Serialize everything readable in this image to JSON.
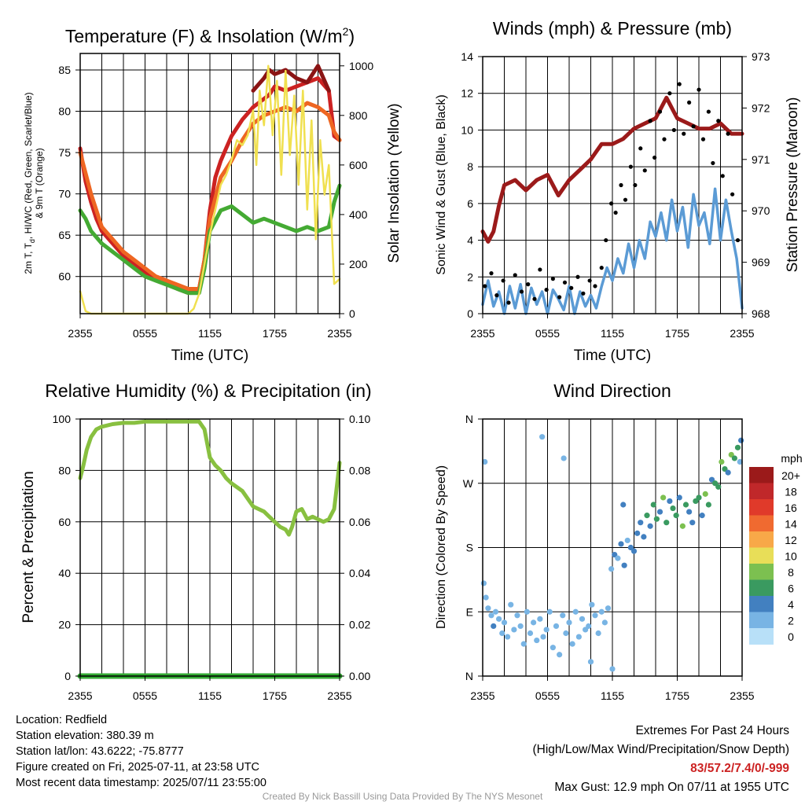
{
  "panels": {
    "temperature": {
      "title_main": "Temperature (F) & Insolation (W/m",
      "title_sup": "2",
      "title_end": ")",
      "ylabel_lines": [
        "2m T, T",
        "d",
        ", HI/WC (Red, Green, Scarlet/Blue)",
        "& 9m T (Orange)"
      ],
      "y2label": "Solar Insolation (Yellow)",
      "xlabel": "Time (UTC)"
    },
    "winds": {
      "title": "Winds (mph) & Pressure (mb)",
      "ylabel": "Sonic Wind & Gust (Blue, Black)",
      "y2label": "Station Pressure (Maroon)",
      "xlabel": "Time (UTC)"
    },
    "humidity": {
      "title": "Relative Humidity (%) & Precipitation (in)",
      "ylabel": "Percent & Precipitation"
    },
    "direction": {
      "title": "Wind Direction",
      "ylabel": "Direction (Colored By Speed)",
      "legend_title": "mph"
    }
  },
  "chart_data": [
    {
      "type": "line",
      "id": "temperature",
      "title": "Temperature (F) & Insolation (W/m2)",
      "xlabel": "Time (UTC)",
      "ylabel": "2m T, Td, HI/WC (Red, Green, Scarlet/Blue) & 9m T (Orange)",
      "y2label": "Solar Insolation (Yellow)",
      "x_ticks": [
        "2355",
        "0555",
        "1155",
        "1755",
        "2355"
      ],
      "xlim": [
        0,
        24
      ],
      "ylim": [
        55.5,
        87
      ],
      "y_ticks": [
        60,
        65,
        70,
        75,
        80,
        85
      ],
      "y2lim": [
        0,
        1050
      ],
      "y2_ticks": [
        0,
        200,
        400,
        600,
        800,
        1000
      ],
      "series": [
        {
          "color": "#cc2222",
          "axis": "left",
          "x": [
            0,
            0.5,
            1,
            1.5,
            2,
            3,
            4,
            5,
            6,
            7,
            8,
            9,
            10,
            11,
            11.5,
            12,
            12.5,
            13,
            13.5,
            14,
            15,
            16,
            17,
            17.5,
            18,
            19,
            20,
            21,
            22,
            23,
            23.5,
            24
          ],
          "y": [
            75.5,
            71.5,
            69,
            67,
            65.5,
            64,
            62.5,
            61.5,
            60.5,
            60,
            59.5,
            58.5,
            58,
            58.5,
            62,
            68,
            72,
            74,
            75.5,
            77,
            79,
            80.5,
            81.5,
            82,
            83,
            82.5,
            83,
            83.5,
            84,
            82.5,
            77,
            76.5
          ]
        },
        {
          "color": "#8b1414",
          "axis": "left",
          "x": [
            16,
            17,
            17.5,
            18,
            19,
            20,
            21,
            22,
            23
          ],
          "y": [
            82.5,
            84,
            85,
            84.5,
            85,
            84,
            83.5,
            85.5,
            82.5
          ]
        },
        {
          "color": "#ee6622",
          "axis": "left",
          "x": [
            0,
            1,
            2,
            3,
            4,
            5,
            6,
            7,
            8,
            9,
            10,
            11,
            11.5,
            12,
            13,
            14,
            15,
            16,
            17,
            18,
            19,
            20,
            21,
            22,
            23,
            23.5,
            24
          ],
          "y": [
            75,
            70,
            66,
            64.5,
            63,
            62,
            61,
            60,
            59.5,
            59,
            58.5,
            58.5,
            62,
            67,
            72,
            74,
            76.5,
            78.5,
            79.5,
            80,
            80.5,
            80,
            81,
            80.5,
            79.5,
            77.5,
            76.5
          ]
        },
        {
          "color": "#44aa33",
          "axis": "left",
          "x": [
            0,
            0.5,
            1,
            2,
            3,
            4,
            5,
            6,
            7,
            8,
            9,
            10,
            11,
            11.5,
            12,
            13,
            14,
            15,
            16,
            17,
            18,
            19,
            20,
            21,
            22,
            23,
            23.5,
            24
          ],
          "y": [
            68,
            67,
            65.5,
            64,
            63,
            62,
            61,
            60,
            59.5,
            59,
            58.5,
            58,
            58,
            61,
            65.5,
            68,
            68.5,
            67.5,
            66.5,
            67,
            66.5,
            66,
            65.5,
            66,
            65.5,
            66,
            69,
            71
          ]
        },
        {
          "color": "#f0e050",
          "axis": "right",
          "x": [
            0,
            0.5,
            1,
            2,
            6,
            9,
            10,
            10.5,
            11,
            11.5,
            12,
            12.5,
            13,
            13.5,
            14,
            14.5,
            15,
            15.5,
            16,
            16.3,
            16.6,
            17,
            17.4,
            17.8,
            18.2,
            18.6,
            19,
            19.4,
            19.8,
            20.2,
            20.6,
            21,
            21.4,
            21.8,
            22.2,
            22.6,
            23,
            23.5,
            24
          ],
          "y": [
            90,
            10,
            0,
            0,
            0,
            0,
            0,
            20,
            80,
            200,
            320,
            420,
            520,
            560,
            620,
            700,
            680,
            720,
            820,
            600,
            900,
            760,
            1000,
            720,
            940,
            560,
            980,
            640,
            880,
            520,
            900,
            420,
            780,
            300,
            700,
            480,
            600,
            120,
            140
          ]
        }
      ]
    },
    {
      "type": "line",
      "id": "winds",
      "title": "Winds (mph) & Pressure (mb)",
      "xlabel": "Time (UTC)",
      "ylabel": "Sonic Wind & Gust (Blue, Black)",
      "y2label": "Station Pressure (Maroon)",
      "x_ticks": [
        "2355",
        "0555",
        "1155",
        "1755",
        "2355"
      ],
      "xlim": [
        0,
        24
      ],
      "ylim": [
        0,
        14
      ],
      "y_ticks": [
        0,
        2,
        4,
        6,
        8,
        10,
        12,
        14
      ],
      "y2lim": [
        968,
        973
      ],
      "y2_ticks": [
        968,
        969,
        970,
        971,
        972,
        973
      ],
      "series": [
        {
          "color": "#9b1a1a",
          "axis": "right",
          "x": [
            0,
            0.5,
            1,
            1.5,
            2,
            3,
            4,
            5,
            6,
            7,
            8,
            9,
            10,
            11,
            12,
            13,
            14,
            15,
            16,
            16.5,
            17,
            17.5,
            18,
            19,
            20,
            21,
            22,
            23,
            24
          ],
          "y": [
            969.6,
            969.4,
            969.6,
            970.1,
            970.5,
            970.6,
            970.4,
            970.6,
            970.7,
            970.3,
            970.6,
            970.8,
            971.0,
            971.3,
            971.3,
            971.4,
            971.6,
            971.7,
            971.8,
            972.0,
            972.2,
            972.0,
            971.8,
            971.7,
            971.6,
            971.6,
            971.7,
            971.5,
            971.5
          ]
        },
        {
          "color": "#5b9bd5",
          "axis": "left",
          "x": [
            0,
            0.5,
            1,
            1.5,
            2,
            2.5,
            3,
            3.5,
            4,
            4.5,
            5,
            5.5,
            6,
            6.5,
            7,
            7.5,
            8,
            8.5,
            9,
            9.5,
            10,
            10.5,
            11,
            11.5,
            12,
            12.5,
            13,
            13.5,
            14,
            14.5,
            15,
            15.5,
            16,
            16.5,
            17,
            17.5,
            18,
            18.5,
            19,
            19.5,
            20,
            20.5,
            21,
            21.5,
            22,
            22.5,
            23,
            23.5,
            24
          ],
          "y": [
            0.5,
            1.8,
            0.4,
            1.2,
            0,
            1.5,
            0.3,
            1.6,
            0,
            1.4,
            0.5,
            1.2,
            0,
            1.3,
            0.8,
            0.2,
            1.5,
            0,
            1.2,
            0.4,
            1.0,
            0.3,
            1.5,
            2.5,
            1.8,
            3.0,
            2.2,
            3.8,
            2.5,
            4.0,
            3.0,
            5.0,
            4.2,
            5.5,
            4.0,
            6.2,
            4.5,
            5.8,
            3.6,
            6.5,
            4.8,
            5.5,
            3.8,
            6.8,
            4.0,
            6.2,
            4.5,
            3.0,
            0.3
          ]
        },
        {
          "type": "scatter",
          "color": "#000000",
          "axis": "left",
          "x": [
            0.2,
            0.8,
            1.3,
            1.9,
            2.4,
            3.0,
            3.6,
            4.2,
            4.8,
            5.3,
            5.9,
            6.5,
            7.1,
            7.6,
            8.2,
            8.8,
            9.3,
            9.9,
            10.4,
            11.0,
            11.4,
            11.9,
            12.3,
            12.8,
            13.2,
            13.7,
            14.1,
            14.6,
            15.0,
            15.5,
            15.9,
            16.4,
            16.8,
            17.3,
            17.7,
            18.2,
            18.6,
            19.1,
            19.5,
            20.0,
            20.4,
            20.9,
            21.3,
            21.8,
            22.2,
            22.7,
            23.1,
            23.6
          ],
          "y": [
            1.5,
            2.2,
            1.0,
            1.8,
            0.6,
            2.1,
            1.2,
            1.6,
            0.8,
            2.4,
            1.3,
            1.9,
            0.9,
            1.7,
            1.4,
            2.0,
            1.1,
            1.8,
            1.5,
            2.5,
            4.0,
            6.0,
            5.5,
            7.0,
            6.2,
            8.0,
            7.0,
            9.0,
            7.8,
            10.5,
            8.5,
            11.0,
            9.5,
            12.0,
            10.0,
            12.5,
            9.8,
            11.5,
            10.2,
            12.2,
            9.5,
            11.0,
            8.2,
            10.5,
            7.5,
            9.8,
            6.5,
            4.0
          ]
        }
      ]
    },
    {
      "type": "line",
      "id": "humidity",
      "title": "Relative Humidity (%) & Precipitation (in)",
      "ylabel": "Percent & Precipitation",
      "x_ticks": [
        "2355",
        "0555",
        "1155",
        "1755",
        "2355"
      ],
      "xlim": [
        0,
        24
      ],
      "ylim": [
        0,
        100
      ],
      "y_ticks": [
        0,
        20,
        40,
        60,
        80,
        100
      ],
      "y2lim": [
        0,
        0.1
      ],
      "y2_ticks": [
        "0.00",
        "0.02",
        "0.04",
        "0.06",
        "0.08",
        "0.10"
      ],
      "series": [
        {
          "color": "#88c040",
          "axis": "left",
          "x": [
            0,
            0.3,
            0.6,
            1,
            1.5,
            2,
            3,
            4,
            5,
            6,
            7,
            8,
            9,
            10,
            11,
            11.5,
            12,
            12.5,
            13,
            13.5,
            14,
            15,
            16,
            16.5,
            17,
            17.5,
            18,
            18.5,
            19,
            19.3,
            19.6,
            20,
            20.5,
            21,
            21.5,
            22,
            22.5,
            23,
            23.5,
            24
          ],
          "y": [
            77,
            82,
            88,
            93,
            96,
            97,
            98,
            98.5,
            98.5,
            99,
            99,
            99,
            99,
            99,
            99,
            96,
            85,
            82,
            80,
            77,
            75,
            72,
            66,
            65,
            64,
            62,
            60,
            58,
            57,
            55,
            58,
            64,
            65,
            61,
            62,
            61,
            60,
            61,
            65,
            83
          ]
        },
        {
          "color": "#33aa33",
          "axis": "right",
          "x": [
            0,
            24
          ],
          "y": [
            0,
            0
          ]
        }
      ]
    },
    {
      "type": "scatter",
      "id": "direction",
      "title": "Wind Direction",
      "ylabel": "Direction (Colored By Speed)",
      "x_ticks": [
        "2355",
        "0555",
        "1155",
        "1755",
        "2355"
      ],
      "xlim": [
        0,
        24
      ],
      "y_ticks": [
        "N",
        "E",
        "S",
        "W",
        "N"
      ],
      "ylim": [
        0,
        360
      ],
      "legend": {
        "title": "mph",
        "labels": [
          "20+",
          "18",
          "16",
          "14",
          "12",
          "10",
          "8",
          "6",
          "4",
          "2",
          "0"
        ],
        "colors": [
          "#9b1a1a",
          "#c0282a",
          "#e03a2a",
          "#f06a30",
          "#f8a848",
          "#e8de58",
          "#7cc050",
          "#3a9a60",
          "#4280c0",
          "#78b4e4",
          "#b8e0f8"
        ]
      },
      "points": {
        "x": [
          0.1,
          0.3,
          0.5,
          0.8,
          1.0,
          1.2,
          1.5,
          1.8,
          2.0,
          2.3,
          2.6,
          2.9,
          3.2,
          3.5,
          3.8,
          4.1,
          4.4,
          4.7,
          5.0,
          5.3,
          5.6,
          5.9,
          6.2,
          6.5,
          6.8,
          7.1,
          7.4,
          7.7,
          8.0,
          8.3,
          8.6,
          8.9,
          9.2,
          9.5,
          9.8,
          10.1,
          10.4,
          10.7,
          11.0,
          11.3,
          11.6,
          11.9,
          12.2,
          12.5,
          12.8,
          13.1,
          13.4,
          13.7,
          14.0,
          14.3,
          14.6,
          14.9,
          15.2,
          15.5,
          15.8,
          16.1,
          16.4,
          16.7,
          17.0,
          17.3,
          17.6,
          17.9,
          18.2,
          18.5,
          18.8,
          19.1,
          19.4,
          19.7,
          20.0,
          20.3,
          20.6,
          20.9,
          21.2,
          21.5,
          21.8,
          22.1,
          22.4,
          22.7,
          23.0,
          23.3,
          23.6,
          23.9,
          5.5,
          7.5,
          10.0,
          0.2,
          23.8,
          12.0,
          13.0
        ],
        "y": [
          130,
          110,
          95,
          85,
          70,
          90,
          80,
          60,
          75,
          55,
          100,
          65,
          85,
          70,
          45,
          90,
          60,
          75,
          50,
          80,
          55,
          65,
          90,
          40,
          70,
          30,
          85,
          60,
          75,
          45,
          90,
          55,
          80,
          65,
          70,
          100,
          85,
          60,
          90,
          75,
          95,
          150,
          170,
          165,
          185,
          155,
          190,
          180,
          175,
          200,
          215,
          195,
          225,
          210,
          240,
          220,
          230,
          250,
          215,
          245,
          235,
          225,
          250,
          210,
          240,
          230,
          215,
          245,
          250,
          225,
          255,
          240,
          275,
          270,
          265,
          300,
          290,
          285,
          310,
          305,
          320,
          330,
          335,
          305,
          20,
          300,
          300,
          10,
          240
        ],
        "speeds": [
          1,
          2,
          1,
          2,
          3,
          1,
          2,
          1,
          2,
          1,
          1,
          2,
          1,
          1,
          2,
          1,
          2,
          1,
          1,
          2,
          1,
          1,
          2,
          1,
          1,
          1,
          2,
          1,
          1,
          1,
          2,
          1,
          1,
          1,
          2,
          1,
          1,
          2,
          1,
          1,
          1,
          2,
          3,
          2,
          3,
          3,
          2,
          3,
          4,
          4,
          3,
          4,
          5,
          4,
          6,
          5,
          4,
          7,
          5,
          4,
          6,
          5,
          4,
          7,
          5,
          4,
          4,
          6,
          5,
          4,
          7,
          5,
          4,
          6,
          5,
          7,
          5,
          4,
          7,
          6,
          5,
          3,
          1,
          1,
          1,
          1,
          1,
          2,
          3
        ]
      }
    }
  ],
  "info": {
    "location": "Location: Redfield",
    "elevation": "Station elevation: 380.39 m",
    "latlon": "Station lat/lon: 43.6222; -75.8777",
    "created": "Figure created on Fri, 2025-07-11, at 23:58 UTC",
    "recent": "Most recent data timestamp: 2025/07/11 23:55:00"
  },
  "extremes": {
    "title": "Extremes For Past 24 Hours",
    "subtitle": "(High/Low/Max Wind/Precipitation/Snow Depth)",
    "values": "83/57.2/7.4/0/-999",
    "gust": "Max Gust: 12.9 mph On 07/11 at 1955 UTC"
  },
  "credit": "Created By Nick Bassill Using Data Provided By The NYS Mesonet"
}
